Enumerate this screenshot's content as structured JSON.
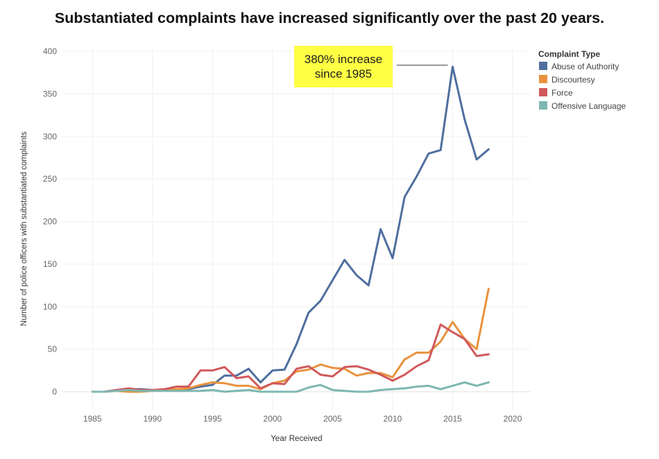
{
  "chart_data": {
    "type": "line",
    "title": "Substantiated complaints have increased significantly over the past 20 years.",
    "xlabel": "Year Received",
    "ylabel": "Number of police officers with substantiated complaints",
    "xlim": [
      1982.5,
      2021.5
    ],
    "ylim": [
      -22,
      405
    ],
    "xticks": [
      1985,
      1990,
      1995,
      2000,
      2005,
      2010,
      2015,
      2020
    ],
    "yticks": [
      0,
      50,
      100,
      150,
      200,
      250,
      300,
      350,
      400
    ],
    "grid": true,
    "legend": {
      "title": "Complaint Type",
      "position": "right"
    },
    "annotation": {
      "lines": [
        "380% increase",
        "since 1985"
      ],
      "background": "#ffff44",
      "target": [
        2014.6,
        380
      ]
    },
    "series": [
      {
        "name": "Abuse of Authority",
        "color": "#4e6f9e",
        "x": [
          1986,
          1987,
          1988,
          1989,
          1990,
          1991,
          1992,
          1993,
          1994,
          1995,
          1996,
          1997,
          1998,
          1999,
          2000,
          2001,
          2002,
          2003,
          2004,
          2005,
          2006,
          2007,
          2008,
          2009,
          2010,
          2011,
          2012,
          2013,
          2014,
          2015,
          2016,
          2017,
          2018
        ],
        "y": [
          0,
          2,
          3,
          3,
          2,
          2,
          1,
          3,
          6,
          8,
          19,
          19,
          27,
          11,
          25,
          26,
          56,
          93,
          107,
          131,
          155,
          137,
          125,
          191,
          157,
          229,
          253,
          280,
          284,
          382,
          320,
          273,
          285
        ]
      },
      {
        "name": "Discourtesy",
        "color": "#e9923d",
        "x": [
          1985,
          1986,
          1987,
          1988,
          1989,
          1990,
          1991,
          1992,
          1993,
          1994,
          1995,
          1996,
          1997,
          1998,
          1999,
          2000,
          2001,
          2002,
          2003,
          2004,
          2005,
          2006,
          2007,
          2008,
          2009,
          2010,
          2011,
          2012,
          2013,
          2014,
          2015,
          2016,
          2017,
          2018
        ],
        "y": [
          0,
          0,
          1,
          0,
          0,
          1,
          2,
          3,
          4,
          8,
          11,
          10,
          7,
          7,
          3,
          10,
          13,
          24,
          26,
          32,
          28,
          27,
          19,
          22,
          22,
          17,
          38,
          46,
          46,
          59,
          82,
          62,
          50,
          121
        ]
      },
      {
        "name": "Force",
        "color": "#d1595b",
        "x": [
          1985,
          1986,
          1987,
          1988,
          1989,
          1990,
          1991,
          1992,
          1993,
          1994,
          1995,
          1996,
          1997,
          1998,
          1999,
          2000,
          2001,
          2002,
          2003,
          2004,
          2005,
          2006,
          2007,
          2008,
          2009,
          2010,
          2011,
          2012,
          2013,
          2014,
          2015,
          2016,
          2017,
          2018
        ],
        "y": [
          0,
          0,
          2,
          4,
          2,
          2,
          3,
          6,
          6,
          25,
          25,
          29,
          16,
          18,
          4,
          10,
          9,
          27,
          30,
          20,
          18,
          29,
          30,
          26,
          20,
          13,
          20,
          30,
          37,
          79,
          70,
          62,
          42,
          44
        ]
      },
      {
        "name": "Offensive Language",
        "color": "#7db7b1",
        "x": [
          1985,
          1986,
          1987,
          1988,
          1989,
          1990,
          1991,
          1992,
          1993,
          1994,
          1995,
          1996,
          1997,
          1998,
          1999,
          2000,
          2001,
          2002,
          2003,
          2004,
          2005,
          2006,
          2007,
          2008,
          2009,
          2010,
          2011,
          2012,
          2013,
          2014,
          2015,
          2016,
          2017,
          2018
        ],
        "y": [
          0,
          0,
          1,
          2,
          1,
          1,
          1,
          1,
          1,
          1,
          2,
          0,
          1,
          2,
          0,
          0,
          0,
          0,
          5,
          8,
          2,
          1,
          0,
          0,
          2,
          3,
          4,
          6,
          7,
          3,
          7,
          11,
          7,
          11
        ]
      }
    ]
  }
}
